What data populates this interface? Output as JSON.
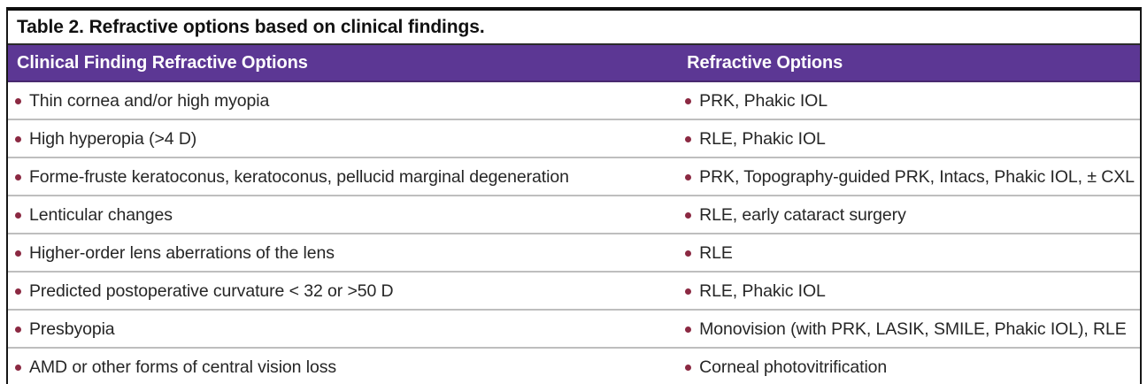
{
  "table": {
    "caption": "Table 2. Refractive options based on clinical findings.",
    "columns": {
      "finding": "Clinical Finding Refractive Options",
      "options": "Refractive Options"
    },
    "rows": [
      {
        "finding": "Thin cornea and/or high myopia",
        "options": "PRK, Phakic IOL"
      },
      {
        "finding": "High hyperopia (>4 D)",
        "options": "RLE, Phakic IOL"
      },
      {
        "finding": "Forme-fruste keratoconus, keratoconus, pellucid marginal degeneration",
        "options": "PRK, Topography-guided PRK, Intacs, Phakic IOL, ± CXL"
      },
      {
        "finding": "Lenticular changes",
        "options": "RLE, early cataract surgery"
      },
      {
        "finding": "Higher-order lens aberrations of the lens",
        "options": "RLE"
      },
      {
        "finding": "Predicted postoperative curvature < 32 or >50 D",
        "options": "RLE, Phakic IOL"
      },
      {
        "finding": "Presbyopia",
        "options": "Monovision (with PRK, LASIK, SMILE, Phakic IOL), RLE"
      },
      {
        "finding": "AMD or other forms of central vision loss",
        "options": "Corneal photovitrification"
      }
    ],
    "colors": {
      "header_bg": "#5C3794",
      "header_text": "#FFFFFF",
      "bullet": "#8B2942",
      "body_text": "#262626",
      "row_divider": "#BEBEBE",
      "outer_border": "#0E0E0E"
    }
  }
}
